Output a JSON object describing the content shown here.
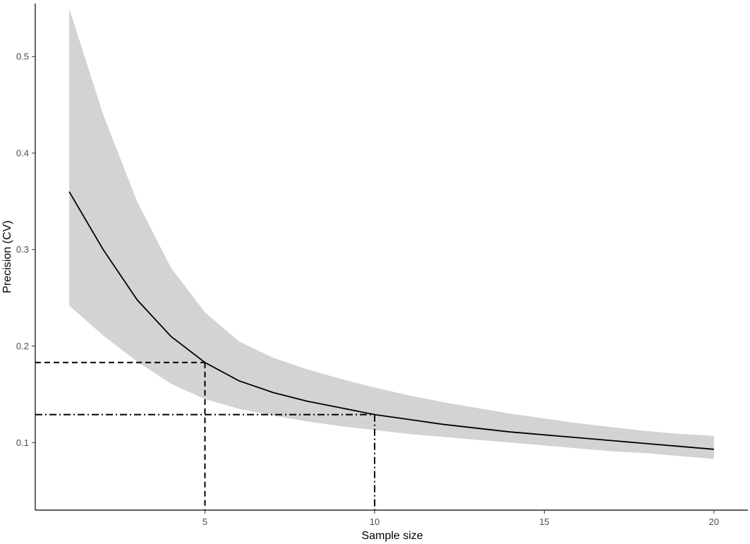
{
  "chart_data": {
    "type": "line",
    "xlabel": "Sample size",
    "ylabel": "Precision (CV)",
    "xlim": [
      0,
      21
    ],
    "ylim": [
      0.03,
      0.555
    ],
    "x_ticks": [
      5,
      10,
      15,
      20
    ],
    "y_ticks": [
      0.1,
      0.2,
      0.3,
      0.4,
      0.5
    ],
    "x_tick_labels": [
      "5",
      "10",
      "15",
      "20"
    ],
    "y_tick_labels": [
      "0.1",
      "0.2",
      "0.3",
      "0.4",
      "0.5"
    ],
    "grid": false,
    "series": [
      {
        "x": [
          1,
          2,
          3,
          4,
          5,
          6,
          7,
          8,
          9,
          10,
          11,
          12,
          13,
          14,
          15,
          16,
          17,
          18,
          19,
          20
        ],
        "values": [
          0.36,
          0.3,
          0.248,
          0.21,
          0.183,
          0.164,
          0.152,
          0.143,
          0.136,
          0.129,
          0.124,
          0.119,
          0.115,
          0.111,
          0.108,
          0.105,
          0.102,
          0.099,
          0.096,
          0.093
        ],
        "lower": [
          0.242,
          0.211,
          0.184,
          0.161,
          0.145,
          0.135,
          0.128,
          0.122,
          0.117,
          0.113,
          0.109,
          0.106,
          0.103,
          0.1,
          0.097,
          0.094,
          0.091,
          0.089,
          0.086,
          0.083
        ],
        "upper": [
          0.55,
          0.44,
          0.35,
          0.281,
          0.235,
          0.205,
          0.188,
          0.176,
          0.166,
          0.157,
          0.149,
          0.142,
          0.136,
          0.13,
          0.125,
          0.12,
          0.116,
          0.112,
          0.109,
          0.107
        ]
      }
    ],
    "reference_lines": [
      {
        "style": "dashed",
        "x": 5,
        "y": 0.183
      },
      {
        "style": "dashdot",
        "x": 10,
        "y": 0.129
      }
    ],
    "colors": {
      "line": "#000000",
      "band": "#d3d3d3",
      "axis": "#000000",
      "tick_label": "#4d4d4d"
    }
  }
}
